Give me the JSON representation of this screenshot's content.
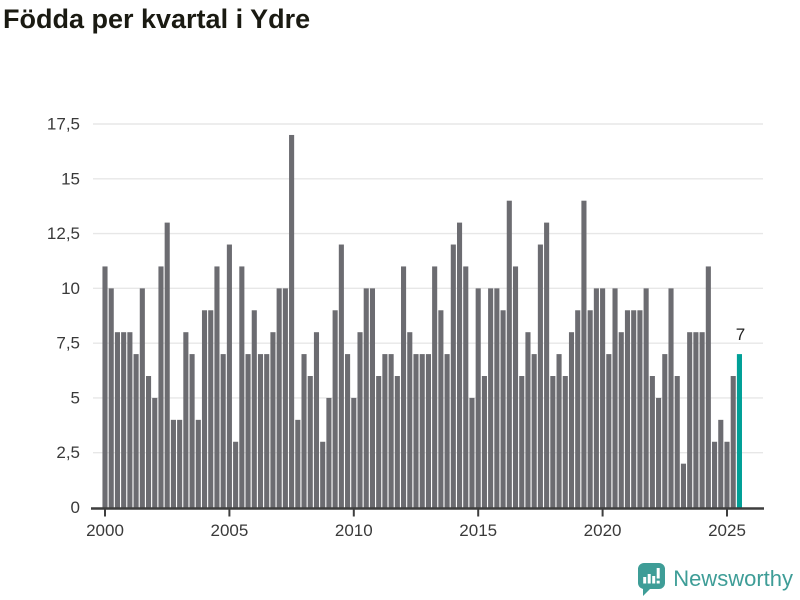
{
  "title": "Födda per kvartal i Ydre",
  "logo": {
    "text": "Newsworthy",
    "icon": "newsworthy-speech-bubble-bar-chart-icon"
  },
  "colors": {
    "background": "#FFFFFF",
    "bar": "#6C6C71",
    "highlight": "#00A097",
    "grid": "#E7E7E7",
    "axis": "#3E3E3E",
    "tick_text": "#3A3A3A",
    "title_text": "#1A1A12",
    "annotation_text": "#222222",
    "logo_teal": "#3E9D97"
  },
  "chart_data": {
    "type": "bar",
    "title": "Födda per kvartal i Ydre",
    "x_unit": "quarter",
    "start": "2000 Q1",
    "end": "2025 Q3",
    "x_tick_labels": [
      "2000",
      "2005",
      "2010",
      "2015",
      "2020",
      "2025"
    ],
    "x_tick_years": [
      2000,
      2005,
      2010,
      2015,
      2020,
      2025
    ],
    "y_tick_labels": [
      "0",
      "2,5",
      "5",
      "7,5",
      "10",
      "12,5",
      "15",
      "17,5"
    ],
    "y_tick_values": [
      0,
      2.5,
      5,
      7.5,
      10,
      12.5,
      15,
      17.5
    ],
    "ylim": [
      0,
      17.5
    ],
    "grid": "horizontal",
    "legend": "none",
    "values": [
      11,
      10,
      8,
      8,
      8,
      7,
      10,
      6,
      5,
      11,
      13,
      4,
      4,
      8,
      7,
      4,
      9,
      9,
      11,
      7,
      12,
      3,
      11,
      7,
      9,
      7,
      7,
      8,
      10,
      10,
      17,
      4,
      7,
      6,
      8,
      3,
      5,
      9,
      12,
      7,
      5,
      8,
      10,
      10,
      6,
      7,
      7,
      6,
      11,
      8,
      7,
      7,
      7,
      11,
      9,
      7,
      12,
      13,
      11,
      5,
      10,
      6,
      10,
      10,
      9,
      14,
      11,
      6,
      8,
      7,
      12,
      13,
      6,
      7,
      6,
      8,
      9,
      14,
      9,
      10,
      10,
      7,
      10,
      8,
      9,
      9,
      9,
      10,
      6,
      5,
      7,
      10,
      6,
      2,
      8,
      8,
      8,
      11,
      3,
      4,
      3,
      6,
      7
    ],
    "highlight_last_bar": true,
    "annotation": {
      "text": "7",
      "bar_index": 102
    }
  }
}
